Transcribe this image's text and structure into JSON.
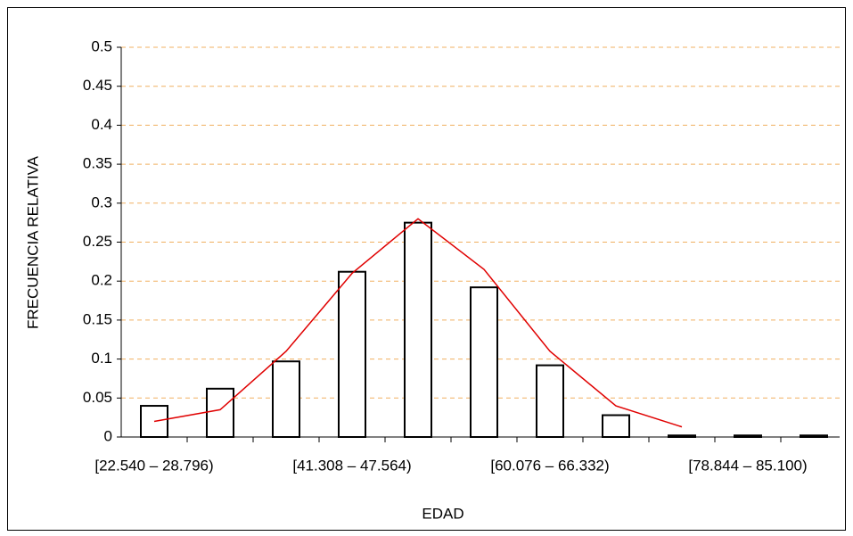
{
  "chart_data": {
    "type": "bar",
    "x_label": "EDAD",
    "y_label": "FRECUENCIA RELATIVA",
    "categories": [
      "[22.540 – 28.796)",
      null,
      null,
      "[41.308 – 47.564)",
      null,
      null,
      "[60.076 – 66.332)",
      null,
      null,
      "[78.844 – 85.100)",
      null
    ],
    "values": [
      0.04,
      0.062,
      0.097,
      0.212,
      0.275,
      0.192,
      0.092,
      0.028,
      0.002,
      0.002,
      0.002
    ],
    "color": "#ffffff",
    "curve": {
      "color": "#e00000",
      "values": [
        0.02,
        0.035,
        0.11,
        0.21,
        0.28,
        0.215,
        0.11,
        0.04,
        0.013,
        null,
        null
      ]
    },
    "ylim": [
      0,
      0.5
    ],
    "yticks": [
      0,
      0.05,
      0.1,
      0.15,
      0.2,
      0.25,
      0.3,
      0.35,
      0.4,
      0.45,
      0.5
    ],
    "grid": true
  }
}
